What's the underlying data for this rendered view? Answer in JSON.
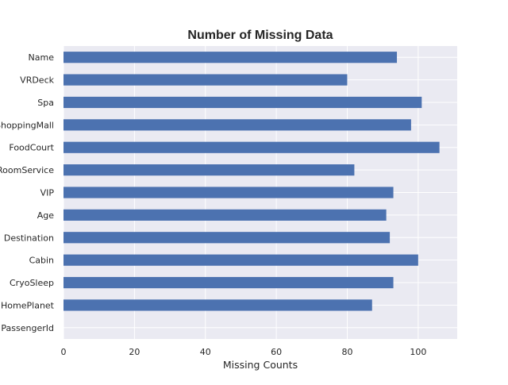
{
  "colors": {
    "plot_background": "#eaeaf2",
    "grid": "#ffffff",
    "bar": "#4c72b0",
    "text": "#262626"
  },
  "chart_data": {
    "type": "bar",
    "orientation": "horizontal",
    "title": "Number of Missing Data",
    "xlabel": "Missing Counts",
    "ylabel": "",
    "categories": [
      "Name",
      "VRDeck",
      "Spa",
      "ShoppingMall",
      "FoodCourt",
      "RoomService",
      "VIP",
      "Age",
      "Destination",
      "Cabin",
      "CryoSleep",
      "HomePlanet",
      "PassengerId"
    ],
    "values": [
      94,
      80,
      101,
      98,
      106,
      82,
      93,
      91,
      92,
      100,
      93,
      87,
      0
    ],
    "xlim": [
      0,
      111
    ],
    "xticks": [
      0,
      20,
      40,
      60,
      80,
      100
    ],
    "grid": true,
    "legend": false
  }
}
